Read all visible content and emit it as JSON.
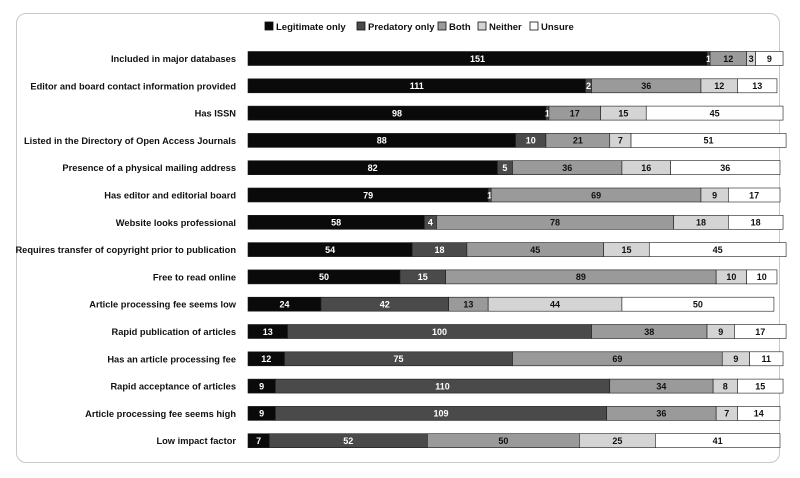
{
  "chart_data": {
    "type": "bar",
    "stacked": true,
    "orientation": "horizontal",
    "title": "",
    "xlabel": "",
    "ylabel": "",
    "grid": false,
    "legend_position": "top",
    "categories": [
      "Included in major databases",
      "Editor and board contact information provided",
      "Has ISSN",
      "Listed in the Directory of Open Access Journals",
      "Presence of a physical mailing address",
      "Has editor and editorial board",
      "Website looks professional",
      "Requires transfer of copyright prior to publication",
      "Free to read online",
      "Article processing fee seems low",
      "Rapid publication of articles",
      "Has an article processing fee",
      "Rapid acceptance of articles",
      "Article processing fee seems high",
      "Low impact factor"
    ],
    "series": [
      {
        "name": "Legitimate only",
        "color": "#0a0a0a",
        "text_color": "#ffffff",
        "values": [
          151,
          111,
          98,
          88,
          82,
          79,
          58,
          54,
          50,
          24,
          13,
          12,
          9,
          9,
          7
        ]
      },
      {
        "name": "Predatory only",
        "color": "#4a4a4a",
        "text_color": "#ffffff",
        "values": [
          1,
          2,
          1,
          10,
          5,
          1,
          4,
          18,
          15,
          42,
          100,
          75,
          110,
          109,
          52
        ]
      },
      {
        "name": "Both",
        "color": "#9a9a9a",
        "text_color": "#111111",
        "values": [
          12,
          36,
          17,
          21,
          36,
          69,
          78,
          45,
          89,
          13,
          38,
          69,
          34,
          36,
          50
        ]
      },
      {
        "name": "Neither",
        "color": "#d4d4d4",
        "text_color": "#111111",
        "values": [
          3,
          12,
          15,
          7,
          16,
          9,
          18,
          15,
          10,
          44,
          9,
          9,
          8,
          7,
          25
        ]
      },
      {
        "name": "Unsure",
        "color": "#ffffff",
        "text_color": "#111111",
        "values": [
          9,
          13,
          45,
          51,
          36,
          17,
          18,
          45,
          10,
          50,
          17,
          11,
          15,
          14,
          41
        ]
      }
    ]
  }
}
